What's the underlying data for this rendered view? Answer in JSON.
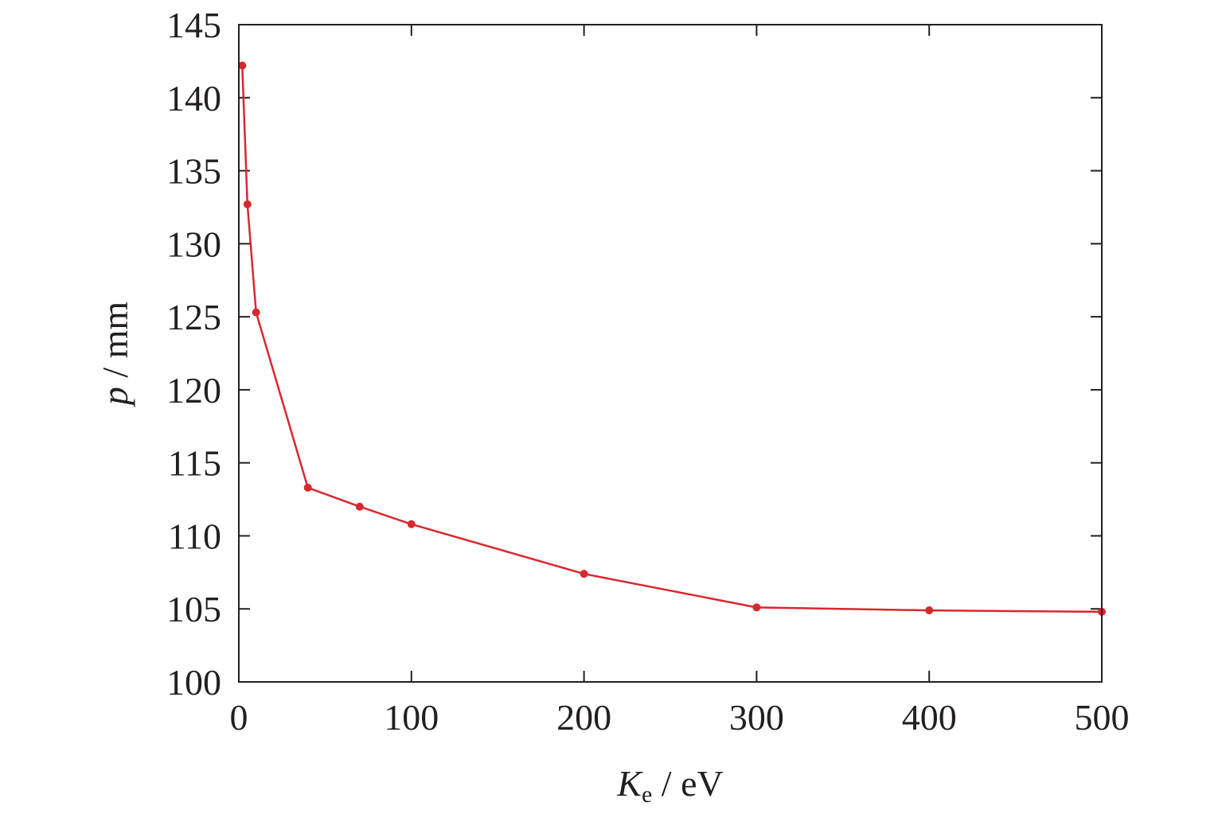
{
  "chart_data": {
    "type": "line",
    "title": "",
    "xlabel": {
      "symbol": "K",
      "subscript": "e",
      "unit": " / eV"
    },
    "ylabel": {
      "symbol": "p",
      "unit": " / mm"
    },
    "xlim": [
      0,
      500
    ],
    "ylim": [
      100,
      145
    ],
    "xticks": [
      0,
      100,
      200,
      300,
      400,
      500
    ],
    "yticks": [
      100,
      105,
      110,
      115,
      120,
      125,
      130,
      135,
      140,
      145
    ],
    "grid": false,
    "legend": "none",
    "series": [
      {
        "color": "#d7282f",
        "x": [
          2,
          5,
          10,
          40,
          70,
          100,
          200,
          300,
          400,
          500
        ],
        "y": [
          142.2,
          132.7,
          125.3,
          113.3,
          112.0,
          110.8,
          107.4,
          105.1,
          104.9,
          104.8
        ]
      }
    ]
  }
}
